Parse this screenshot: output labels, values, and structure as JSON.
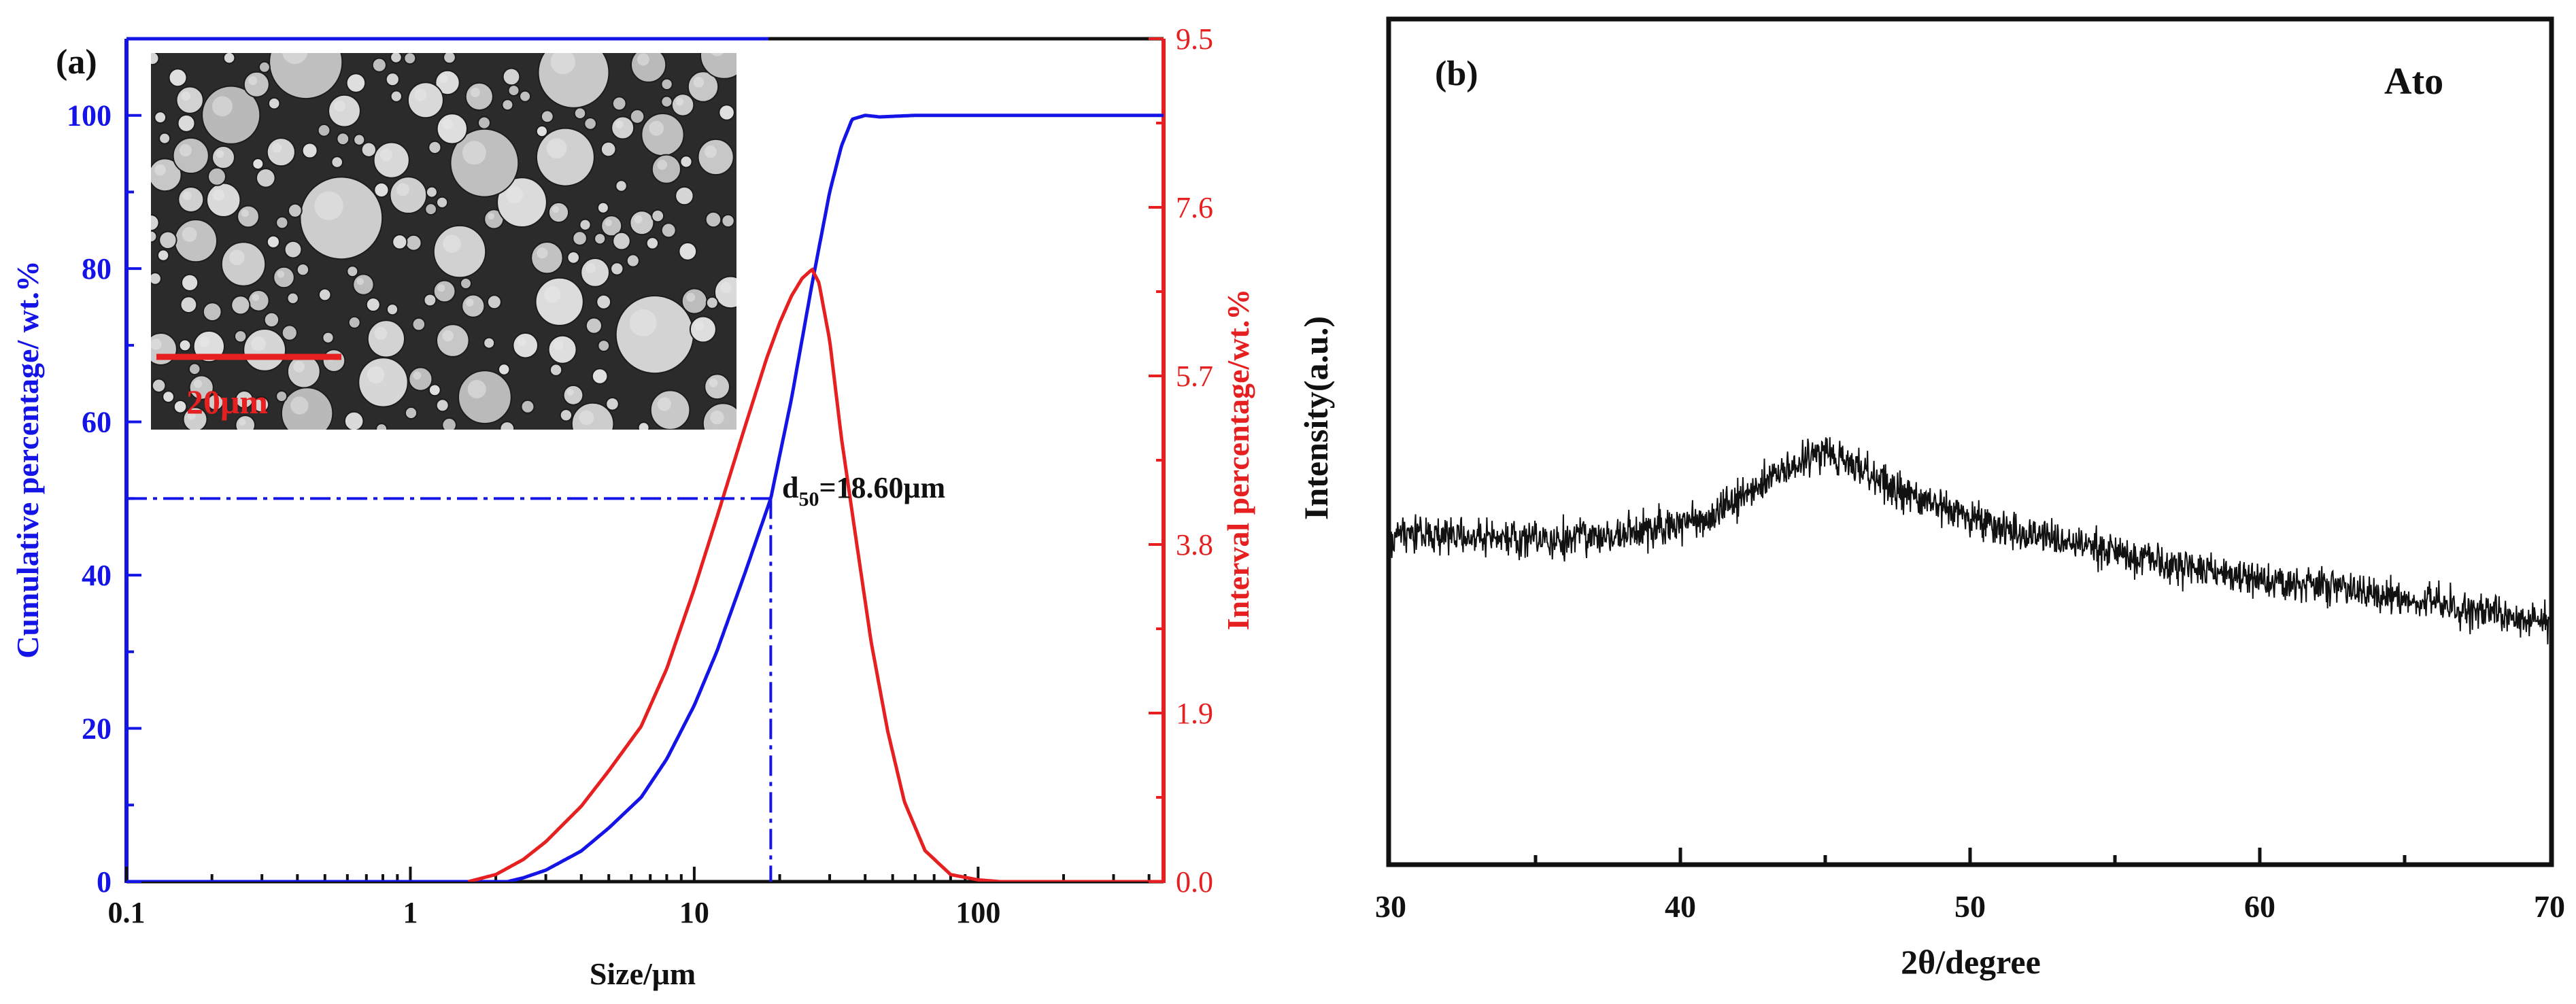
{
  "panel_a": {
    "label": "(a)",
    "x_label": "Size/μm",
    "y_left_label": "Cumulative percentage/ wt.%",
    "y_right_label": "Interval percentage/wt.%",
    "x_tick_labels": [
      "0.1",
      "1",
      "10",
      "100"
    ],
    "y_left_tick_labels": [
      "0",
      "20",
      "40",
      "60",
      "80",
      "100"
    ],
    "y_right_tick_labels": [
      "0.0",
      "1.9",
      "3.8",
      "5.7",
      "7.6",
      "9.5"
    ],
    "inset": {
      "description_icon": "sem-micrograph",
      "scale_bar_label": "20μm"
    },
    "annotation": {
      "prefix": "d",
      "subscript": "50",
      "suffix": "=18.60μm"
    },
    "colors": {
      "cumulative": "#1414e6",
      "interval": "#e62020",
      "axis": "#111111"
    }
  },
  "panel_b": {
    "label": "(b)",
    "sample_label": "Ato",
    "x_label": "2θ/degree",
    "y_label": "Intensity(a.u.)",
    "x_tick_labels": [
      "30",
      "40",
      "50",
      "60",
      "70"
    ]
  },
  "chart_data": [
    {
      "type": "line",
      "title": "",
      "xlabel": "Size/μm",
      "ylabel": "Cumulative percentage/ wt.%",
      "y2label": "Interval percentage/wt.%",
      "xscale": "log",
      "xlim": [
        0.1,
        450
      ],
      "ylim": [
        0,
        110
      ],
      "y2lim": [
        0,
        9.5
      ],
      "d50": 18.6,
      "series": [
        {
          "name": "Cumulative",
          "axis": "left",
          "x": [
            2.2,
            2.5,
            3,
            4,
            5,
            6.5,
            8,
            10,
            12,
            15,
            18.6,
            22,
            26,
            30,
            33,
            36,
            40,
            45,
            60,
            100,
            450
          ],
          "y": [
            0,
            0.5,
            1.5,
            4,
            7,
            11,
            16,
            23,
            30,
            40,
            50,
            63,
            78,
            90,
            96,
            99.5,
            100,
            99.8,
            100,
            100,
            100
          ]
        },
        {
          "name": "Interval",
          "axis": "right",
          "x": [
            1.6,
            2,
            2.5,
            3,
            4,
            5,
            6.5,
            8,
            10,
            12,
            15,
            18,
            20,
            22,
            24,
            26,
            27.5,
            30,
            33,
            37,
            42,
            48,
            55,
            65,
            80,
            100,
            120
          ],
          "y": [
            0,
            0.08,
            0.25,
            0.45,
            0.85,
            1.25,
            1.75,
            2.4,
            3.3,
            4.1,
            5.1,
            5.9,
            6.3,
            6.6,
            6.8,
            6.9,
            6.75,
            6.1,
            5.0,
            3.9,
            2.7,
            1.7,
            0.9,
            0.35,
            0.08,
            0.02,
            0
          ]
        }
      ]
    },
    {
      "type": "line",
      "title": "",
      "xlabel": "2θ/degree",
      "ylabel": "Intensity(a.u.)",
      "xlim": [
        30,
        70
      ],
      "ylim": [
        0,
        100
      ],
      "series": [
        {
          "name": "Ato",
          "x": [
            30,
            32,
            34,
            36,
            38,
            40,
            41,
            42,
            43,
            44,
            45,
            46,
            47,
            48,
            50,
            52,
            54,
            56,
            58,
            60,
            62,
            64,
            66,
            68,
            70
          ],
          "y": [
            39,
            39,
            38.7,
            38.5,
            39,
            40,
            41,
            43,
            45.8,
            47.5,
            48.5,
            47.2,
            45,
            43.3,
            41,
            39,
            37.5,
            36,
            34.8,
            33.8,
            32.8,
            31.8,
            30.8,
            29.5,
            28.5
          ]
        }
      ]
    }
  ]
}
